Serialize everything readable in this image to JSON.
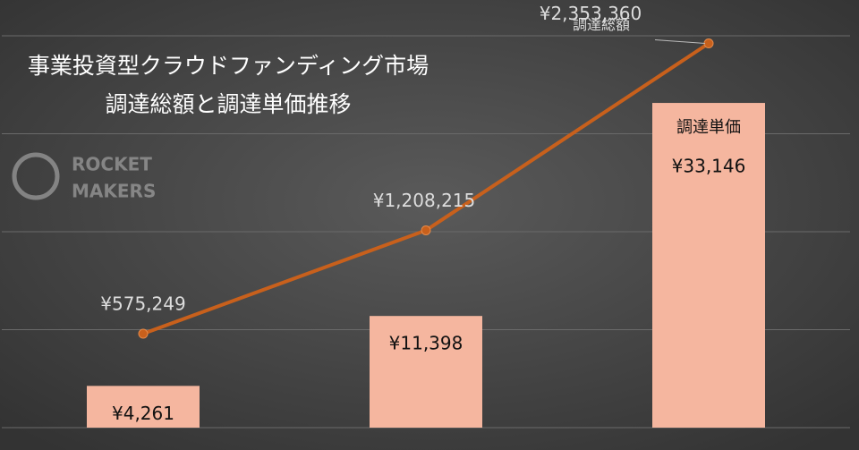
{
  "logo": {
    "line1": "ROCKET",
    "line2": "MAKERS"
  },
  "chart_data": {
    "type": "combo",
    "title": "事業投資型クラウドファンディング市場",
    "subtitle": "調達総額と調達単価推移",
    "categories": [
      null,
      null,
      null
    ],
    "series": [
      {
        "name": "調達単価",
        "type": "bar",
        "color": "#f5b69f",
        "values": [
          4261,
          11398,
          33146
        ],
        "value_labels": [
          "¥4,261",
          "¥11,398",
          "¥33,146"
        ]
      },
      {
        "name": "調達総額",
        "type": "line",
        "axis": "y2",
        "color": "#c8601c",
        "values": [
          575249,
          1208215,
          2353360
        ],
        "value_labels": [
          "¥575,249",
          "¥1,208,215",
          "¥2,353,360"
        ]
      }
    ],
    "ylim": [
      0,
      40000
    ],
    "yticks": [
      0,
      10000,
      20000,
      30000,
      40000
    ],
    "y2lim": [
      0,
      2400000
    ],
    "grid": true
  }
}
